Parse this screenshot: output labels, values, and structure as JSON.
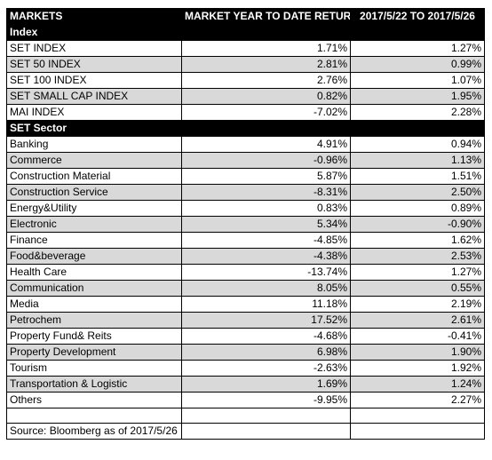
{
  "header": {
    "col1": "MARKETS",
    "col2": "MARKET YEAR TO DATE RETURN",
    "col3": "2017/5/22 TO 2017/5/26"
  },
  "index_section": {
    "title": "Index",
    "rows": [
      {
        "name": "SET INDEX",
        "ytd": "1.71%",
        "week": "1.27%",
        "shaded": false
      },
      {
        "name": "SET 50 INDEX",
        "ytd": "2.81%",
        "week": "0.99%",
        "shaded": true
      },
      {
        "name": "SET 100 INDEX",
        "ytd": "2.76%",
        "week": "1.07%",
        "shaded": false
      },
      {
        "name": "SET SMALL CAP INDEX",
        "ytd": "0.82%",
        "week": "1.95%",
        "shaded": true
      },
      {
        "name": "MAI INDEX",
        "ytd": "-7.02%",
        "week": "2.28%",
        "shaded": false
      }
    ]
  },
  "sector_section": {
    "title": "SET Sector",
    "rows": [
      {
        "name": "Banking",
        "ytd": "4.91%",
        "week": "0.94%",
        "shaded": false
      },
      {
        "name": "Commerce",
        "ytd": "-0.96%",
        "week": "1.13%",
        "shaded": true
      },
      {
        "name": "Construction Material",
        "ytd": "5.87%",
        "week": "1.51%",
        "shaded": false
      },
      {
        "name": "Construction Service",
        "ytd": "-8.31%",
        "week": "2.50%",
        "shaded": true
      },
      {
        "name": "Energy&Utility",
        "ytd": "0.83%",
        "week": "0.89%",
        "shaded": false
      },
      {
        "name": "Electronic",
        "ytd": "5.34%",
        "week": "-0.90%",
        "shaded": true
      },
      {
        "name": "Finance",
        "ytd": "-4.85%",
        "week": "1.62%",
        "shaded": false
      },
      {
        "name": "Food&beverage",
        "ytd": "-4.38%",
        "week": "2.53%",
        "shaded": true
      },
      {
        "name": "Health Care",
        "ytd": "-13.74%",
        "week": "1.27%",
        "shaded": false
      },
      {
        "name": "Communication",
        "ytd": "8.05%",
        "week": "0.55%",
        "shaded": true
      },
      {
        "name": "Media",
        "ytd": "11.18%",
        "week": "2.19%",
        "shaded": false
      },
      {
        "name": "Petrochem",
        "ytd": "17.52%",
        "week": "2.61%",
        "shaded": true
      },
      {
        "name": "Property Fund& Reits",
        "ytd": "-4.68%",
        "week": "-0.41%",
        "shaded": false
      },
      {
        "name": "Property Development",
        "ytd": "6.98%",
        "week": "1.90%",
        "shaded": true
      },
      {
        "name": "Tourism",
        "ytd": "-2.63%",
        "week": "1.92%",
        "shaded": false
      },
      {
        "name": "Transportation & Logistic",
        "ytd": "1.69%",
        "week": "1.24%",
        "shaded": true
      },
      {
        "name": "Others",
        "ytd": "-9.95%",
        "week": "2.27%",
        "shaded": false
      }
    ]
  },
  "footer": {
    "source": "Source: Bloomberg as of 2017/5/26"
  },
  "colors": {
    "header_bg": "#000000",
    "header_text": "#ffffff",
    "shaded_row": "#d9d9d9"
  }
}
